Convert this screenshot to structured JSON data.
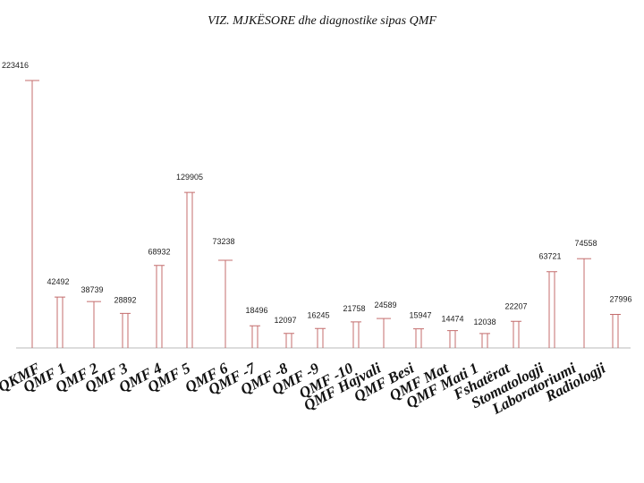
{
  "chart_data": {
    "type": "bar",
    "title": "VIZ. MJKËSORE dhe diagnostike sipas QMF",
    "xlabel": "",
    "ylabel": "",
    "ylim": [
      0,
      223416
    ],
    "categories": [
      "QKMF",
      "QMF 1",
      "QMF 2",
      "QMF 3",
      "QMF 4",
      "QMF 5",
      "QMF 6",
      "QMF -7",
      "QMF -8",
      "QMF -9",
      "QMF -10",
      "QMF Hajvali",
      "QMF Besi",
      "QMF Mat",
      "QMF Mati 1",
      "Fshatërat",
      "Stomatologji",
      "Laboratoriumi",
      "Radiologji"
    ],
    "values": [
      223416,
      42492,
      38739,
      28892,
      68932,
      129905,
      73238,
      18496,
      12097,
      16245,
      21758,
      24589,
      15947,
      14474,
      12038,
      22207,
      63721,
      74558,
      27996
    ],
    "value_labels": [
      "223416",
      "42492",
      "38739",
      "28892",
      "68932",
      "129905",
      "73238",
      "18496",
      "12097",
      "16245",
      "21758",
      "24589",
      "15947",
      "14474",
      "12038",
      "22207",
      "63721",
      "74558",
      "27996"
    ]
  }
}
